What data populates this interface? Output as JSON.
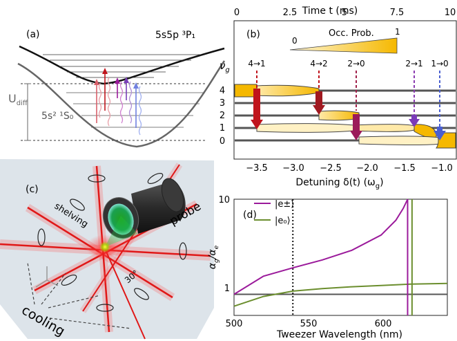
{
  "panel_a": {
    "label": "(a)",
    "upper_state": "5s5p ³P₁",
    "lower_state": "5s² ¹S₀",
    "udiff_label": "U",
    "udiff_sub": "diff"
  },
  "panel_b": {
    "label": "(b)",
    "top_axis_title": "Time t (ms)",
    "top_ticks": [
      "0",
      "2.5",
      "5",
      "7.5",
      "10"
    ],
    "bottom_axis_title": "Detuning δ(t) (ω",
    "bottom_axis_sub": "g",
    "bottom_axis_tail": ")",
    "bottom_ticks": [
      "−3.5",
      "−3.0",
      "−2.5",
      "−2.0",
      "−1.5",
      "−1.0"
    ],
    "level_axis_title": "ν",
    "level_axis_sub": "g",
    "levels": [
      "4",
      "3",
      "2",
      "1",
      "0"
    ],
    "colorbar_label": "Occ. Prob.",
    "colorbar_min": "0",
    "colorbar_max": "1",
    "transitions": [
      "4→1",
      "4→2",
      "2→0",
      "2→1",
      "1→0"
    ]
  },
  "panel_c": {
    "label": "(c)",
    "shelving": "shelving",
    "probe": "probe",
    "angle": "30°",
    "cooling": "cooling"
  },
  "panel_d": {
    "label": "(d)",
    "ylabel": "α",
    "ylabel_sub1": "g",
    "ylabel_mid": "/α",
    "ylabel_sub2": "e",
    "xlabel": "Tweezer Wavelength (nm)",
    "xticks": [
      "500",
      "550",
      "600"
    ],
    "yticks": [
      "1",
      "10"
    ],
    "legend": [
      "|e±⟩",
      "|e₀⟩"
    ]
  },
  "colors": {
    "red": "#c0141c",
    "purple": "#9b1a9b",
    "green": "#6b8e2e",
    "blue": "#4a5fd0",
    "gold": "#f5b800"
  },
  "chart_data": {
    "type": "line",
    "xlabel": "Tweezer Wavelength (nm)",
    "ylabel": "αg/αe",
    "xlim": [
      500,
      645
    ],
    "ylim": [
      0.6,
      10
    ],
    "log_y": true,
    "series": [
      {
        "name": "|e±⟩",
        "x": [
          500,
          520,
          540,
          560,
          580,
          600,
          610,
          615,
          618
        ],
        "y": [
          1.0,
          1.55,
          1.9,
          2.3,
          2.9,
          4.2,
          6.0,
          8.0,
          10.0
        ]
      },
      {
        "name": "|e₀⟩",
        "x": [
          500,
          520,
          540,
          560,
          580,
          600,
          620,
          645
        ],
        "y": [
          0.75,
          0.95,
          1.08,
          1.15,
          1.2,
          1.24,
          1.28,
          1.3
        ]
      }
    ],
    "reference_lines": [
      {
        "y": 1
      },
      {
        "x": 540
      }
    ]
  }
}
